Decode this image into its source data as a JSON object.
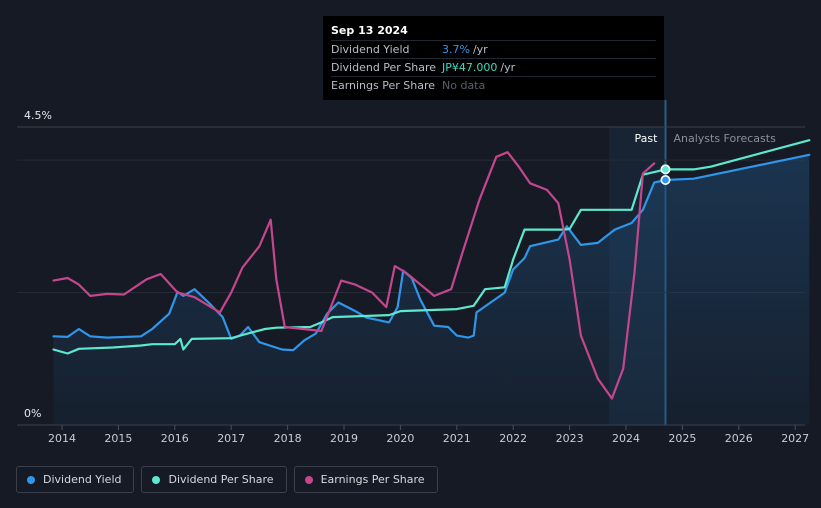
{
  "tooltip": {
    "date": "Sep 13 2024",
    "rows": [
      {
        "label": "Dividend Yield",
        "value": "3.7%",
        "unit": "/yr",
        "color": "#2f96ea"
      },
      {
        "label": "Dividend Per Share",
        "value": "JP¥47.000",
        "unit": "/yr",
        "color": "#3fd9c0"
      },
      {
        "label": "Earnings Per Share",
        "value": "No data",
        "unit": "",
        "color": "#5a5f6a"
      }
    ]
  },
  "legend": [
    {
      "label": "Dividend Yield",
      "color": "#2f96ea"
    },
    {
      "label": "Dividend Per Share",
      "color": "#5ee8cf"
    },
    {
      "label": "Earnings Per Share",
      "color": "#c4478e"
    }
  ],
  "chart_data": {
    "type": "line",
    "y_axis_labels": [
      "4.5%",
      "0%"
    ],
    "ylim": [
      0,
      4.5
    ],
    "xlim": [
      2013.3,
      2027.3
    ],
    "x_ticks": [
      "2014",
      "2015",
      "2016",
      "2017",
      "2018",
      "2019",
      "2020",
      "2021",
      "2022",
      "2023",
      "2024",
      "2025",
      "2026",
      "2027"
    ],
    "regions": {
      "past_label": "Past",
      "forecast_label": "Analysts Forecasts",
      "past_start": 2023.7,
      "now": 2024.7
    },
    "grid": true,
    "legend_position": "bottom-left",
    "series": [
      {
        "name": "Dividend Yield",
        "color": "#2f96ea",
        "values": [
          [
            2013.85,
            1.34
          ],
          [
            2014.1,
            1.33
          ],
          [
            2014.3,
            1.45
          ],
          [
            2014.5,
            1.34
          ],
          [
            2014.8,
            1.32
          ],
          [
            2015.4,
            1.34
          ],
          [
            2015.6,
            1.45
          ],
          [
            2015.9,
            1.68
          ],
          [
            2016.05,
            2.01
          ],
          [
            2016.15,
            1.95
          ],
          [
            2016.35,
            2.05
          ],
          [
            2016.6,
            1.85
          ],
          [
            2016.85,
            1.63
          ],
          [
            2017.0,
            1.3
          ],
          [
            2017.15,
            1.35
          ],
          [
            2017.3,
            1.48
          ],
          [
            2017.5,
            1.25
          ],
          [
            2017.9,
            1.14
          ],
          [
            2018.1,
            1.13
          ],
          [
            2018.3,
            1.28
          ],
          [
            2018.5,
            1.38
          ],
          [
            2018.7,
            1.68
          ],
          [
            2018.9,
            1.85
          ],
          [
            2019.2,
            1.72
          ],
          [
            2019.4,
            1.62
          ],
          [
            2019.8,
            1.55
          ],
          [
            2019.95,
            1.78
          ],
          [
            2020.05,
            2.33
          ],
          [
            2020.2,
            2.22
          ],
          [
            2020.35,
            1.9
          ],
          [
            2020.6,
            1.5
          ],
          [
            2020.85,
            1.48
          ],
          [
            2021.0,
            1.35
          ],
          [
            2021.2,
            1.32
          ],
          [
            2021.3,
            1.35
          ],
          [
            2021.35,
            1.7
          ],
          [
            2021.6,
            1.85
          ],
          [
            2021.85,
            2.0
          ],
          [
            2022.0,
            2.35
          ],
          [
            2022.2,
            2.52
          ],
          [
            2022.3,
            2.7
          ],
          [
            2022.8,
            2.8
          ],
          [
            2022.95,
            3.0
          ],
          [
            2023.2,
            2.72
          ],
          [
            2023.5,
            2.75
          ],
          [
            2023.8,
            2.95
          ],
          [
            2024.1,
            3.05
          ],
          [
            2024.3,
            3.25
          ],
          [
            2024.5,
            3.66
          ],
          [
            2024.7,
            3.7
          ],
          [
            2025.2,
            3.72
          ],
          [
            2027.25,
            4.08
          ]
        ]
      },
      {
        "name": "Dividend Per Share",
        "color": "#5ee8cf",
        "values": [
          [
            2013.85,
            1.14
          ],
          [
            2014.1,
            1.08
          ],
          [
            2014.3,
            1.15
          ],
          [
            2014.9,
            1.17
          ],
          [
            2015.4,
            1.2
          ],
          [
            2015.6,
            1.22
          ],
          [
            2016.0,
            1.22
          ],
          [
            2016.1,
            1.3
          ],
          [
            2016.15,
            1.14
          ],
          [
            2016.3,
            1.3
          ],
          [
            2017.0,
            1.31
          ],
          [
            2017.2,
            1.36
          ],
          [
            2017.6,
            1.45
          ],
          [
            2017.8,
            1.47
          ],
          [
            2018.4,
            1.48
          ],
          [
            2018.6,
            1.55
          ],
          [
            2018.8,
            1.63
          ],
          [
            2019.8,
            1.66
          ],
          [
            2020.0,
            1.72
          ],
          [
            2021.0,
            1.75
          ],
          [
            2021.3,
            1.8
          ],
          [
            2021.5,
            2.05
          ],
          [
            2021.85,
            2.08
          ],
          [
            2022.0,
            2.5
          ],
          [
            2022.2,
            2.95
          ],
          [
            2022.9,
            2.95
          ],
          [
            2023.0,
            2.96
          ],
          [
            2023.2,
            3.25
          ],
          [
            2024.1,
            3.25
          ],
          [
            2024.3,
            3.78
          ],
          [
            2024.7,
            3.86
          ],
          [
            2025.2,
            3.86
          ],
          [
            2025.5,
            3.9
          ],
          [
            2027.25,
            4.3
          ]
        ]
      },
      {
        "name": "Earnings Per Share",
        "color": "#c4478e",
        "values": [
          [
            2013.85,
            2.18
          ],
          [
            2014.1,
            2.22
          ],
          [
            2014.3,
            2.12
          ],
          [
            2014.5,
            1.95
          ],
          [
            2014.8,
            1.98
          ],
          [
            2015.1,
            1.97
          ],
          [
            2015.5,
            2.2
          ],
          [
            2015.75,
            2.28
          ],
          [
            2016.05,
            2.0
          ],
          [
            2016.35,
            1.93
          ],
          [
            2016.8,
            1.7
          ],
          [
            2017.0,
            2.0
          ],
          [
            2017.2,
            2.38
          ],
          [
            2017.5,
            2.7
          ],
          [
            2017.7,
            3.1
          ],
          [
            2017.8,
            2.2
          ],
          [
            2017.95,
            1.48
          ],
          [
            2018.6,
            1.42
          ],
          [
            2018.95,
            2.18
          ],
          [
            2019.2,
            2.12
          ],
          [
            2019.5,
            2.0
          ],
          [
            2019.75,
            1.78
          ],
          [
            2019.9,
            2.4
          ],
          [
            2020.1,
            2.3
          ],
          [
            2020.6,
            1.95
          ],
          [
            2020.9,
            2.05
          ],
          [
            2021.1,
            2.6
          ],
          [
            2021.4,
            3.4
          ],
          [
            2021.7,
            4.05
          ],
          [
            2021.9,
            4.12
          ],
          [
            2022.1,
            3.9
          ],
          [
            2022.3,
            3.65
          ],
          [
            2022.6,
            3.55
          ],
          [
            2022.8,
            3.35
          ],
          [
            2023.0,
            2.5
          ],
          [
            2023.2,
            1.35
          ],
          [
            2023.5,
            0.7
          ],
          [
            2023.75,
            0.4
          ],
          [
            2023.95,
            0.85
          ],
          [
            2024.15,
            2.3
          ],
          [
            2024.3,
            3.8
          ],
          [
            2024.5,
            3.95
          ]
        ]
      }
    ],
    "highlight_points": [
      {
        "series": "Dividend Per Share",
        "x": 2024.7,
        "y": 3.86
      },
      {
        "series": "Dividend Yield",
        "x": 2024.7,
        "y": 3.7
      }
    ]
  }
}
